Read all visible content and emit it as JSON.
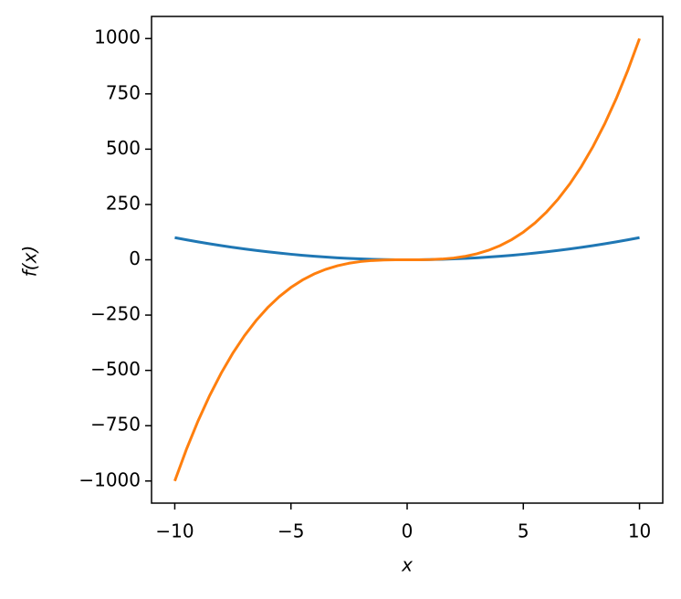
{
  "chart_data": {
    "type": "line",
    "xlabel": "x",
    "ylabel": "f(x)",
    "x": [
      -10,
      -9.5,
      -9,
      -8.5,
      -8,
      -7.5,
      -7,
      -6.5,
      -6,
      -5.5,
      -5,
      -4.5,
      -4,
      -3.5,
      -3,
      -2.5,
      -2,
      -1.5,
      -1,
      -0.5,
      0,
      0.5,
      1,
      1.5,
      2,
      2.5,
      3,
      3.5,
      4,
      4.5,
      5,
      5.5,
      6,
      6.5,
      7,
      7.5,
      8,
      8.5,
      9,
      9.5,
      10
    ],
    "series": [
      {
        "color": "#1f77b4",
        "values": [
          100,
          90.25,
          81,
          72.25,
          64,
          56.25,
          49,
          42.25,
          36,
          30.25,
          25,
          20.25,
          16,
          12.25,
          9,
          6.25,
          4,
          2.25,
          1,
          0.25,
          0,
          0.25,
          1,
          2.25,
          4,
          6.25,
          9,
          12.25,
          16,
          20.25,
          25,
          30.25,
          36,
          42.25,
          49,
          56.25,
          64,
          72.25,
          81,
          90.25,
          100
        ]
      },
      {
        "color": "#ff7f0e",
        "values": [
          -1000,
          -857.375,
          -729,
          -614.125,
          -512,
          -421.875,
          -343,
          -274.625,
          -216,
          -166.375,
          -125,
          -91.125,
          -64,
          -42.875,
          -27,
          -15.625,
          -8,
          -3.375,
          -1,
          -0.125,
          0,
          0.125,
          1,
          3.375,
          8,
          15.625,
          27,
          42.875,
          64,
          91.125,
          125,
          166.375,
          216,
          274.625,
          343,
          421.875,
          512,
          614.125,
          729,
          857.375,
          1000
        ]
      }
    ],
    "xlim": [
      -11,
      11
    ],
    "xticks": [
      {
        "value": -10,
        "label": "−10"
      },
      {
        "value": -5,
        "label": "−5"
      },
      0,
      5,
      10
    ],
    "ylim": [
      -1100,
      1100
    ],
    "yticks": [
      {
        "value": -1000,
        "label": "−1000"
      },
      {
        "value": -750,
        "label": "−750"
      },
      {
        "value": -500,
        "label": "−500"
      },
      {
        "value": -250,
        "label": "−250"
      },
      0,
      250,
      500,
      750,
      1000
    ]
  }
}
